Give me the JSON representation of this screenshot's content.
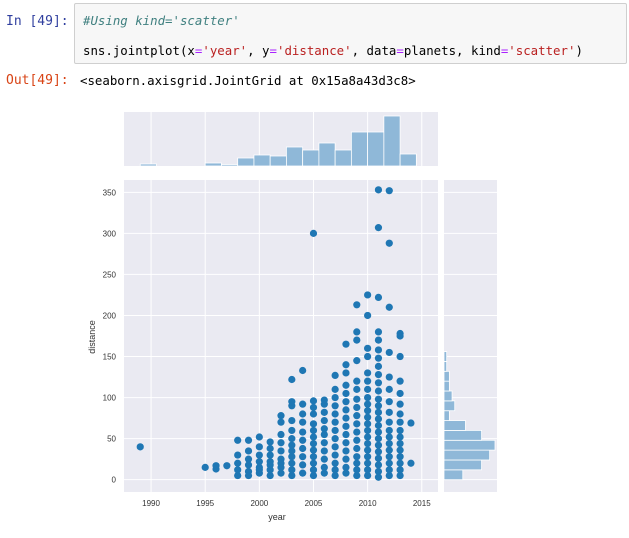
{
  "cell_in": {
    "prompt": "In [49]:",
    "comment_line": "#Using kind='scatter'",
    "code": {
      "p1": "sns.jointplot(x",
      "eq1": "=",
      "s1": "'year'",
      "p2": ", y",
      "eq2": "=",
      "s2": "'distance'",
      "p3": ", data",
      "eq3": "=",
      "p4": "planets, kind",
      "eq4": "=",
      "s4": "'scatter'",
      "p5": ")"
    }
  },
  "cell_out": {
    "prompt": "Out[49]:",
    "text": "<seaborn.axisgrid.JointGrid at 0x15a8a43d3c8>"
  },
  "colors": {
    "accent": "#1f77b4",
    "hist": "#8fb8d8",
    "plot_bg": "#eaeaf2"
  },
  "chart_data": {
    "type": "scatter",
    "xlabel": "year",
    "ylabel": "distance",
    "xlim": [
      1987.5,
      2016.5
    ],
    "ylim": [
      -15,
      365
    ],
    "xticks": [
      1990,
      1995,
      2000,
      2005,
      2010,
      2015
    ],
    "yticks": [
      0,
      50,
      100,
      150,
      200,
      250,
      300,
      350
    ],
    "grid": true,
    "points": [
      [
        1989,
        40
      ],
      [
        1995,
        15
      ],
      [
        1996,
        13
      ],
      [
        1996,
        17
      ],
      [
        1997,
        17
      ],
      [
        1998,
        20
      ],
      [
        1998,
        30
      ],
      [
        1998,
        48
      ],
      [
        1998,
        5
      ],
      [
        1998,
        12
      ],
      [
        1999,
        10
      ],
      [
        1999,
        18
      ],
      [
        1999,
        25
      ],
      [
        1999,
        35
      ],
      [
        1999,
        48
      ],
      [
        1999,
        5
      ],
      [
        2000,
        8
      ],
      [
        2000,
        15
      ],
      [
        2000,
        22
      ],
      [
        2000,
        30
      ],
      [
        2000,
        40
      ],
      [
        2000,
        52
      ],
      [
        2000,
        12
      ],
      [
        2001,
        5
      ],
      [
        2001,
        12
      ],
      [
        2001,
        22
      ],
      [
        2001,
        30
      ],
      [
        2001,
        38
      ],
      [
        2001,
        46
      ],
      [
        2001,
        18
      ],
      [
        2002,
        8
      ],
      [
        2002,
        15
      ],
      [
        2002,
        25
      ],
      [
        2002,
        35
      ],
      [
        2002,
        45
      ],
      [
        2002,
        55
      ],
      [
        2002,
        70
      ],
      [
        2002,
        78
      ],
      [
        2002,
        20
      ],
      [
        2003,
        5
      ],
      [
        2003,
        12
      ],
      [
        2003,
        20
      ],
      [
        2003,
        28
      ],
      [
        2003,
        35
      ],
      [
        2003,
        42
      ],
      [
        2003,
        50
      ],
      [
        2003,
        60
      ],
      [
        2003,
        72
      ],
      [
        2003,
        90
      ],
      [
        2003,
        95
      ],
      [
        2003,
        122
      ],
      [
        2004,
        8
      ],
      [
        2004,
        18
      ],
      [
        2004,
        28
      ],
      [
        2004,
        38
      ],
      [
        2004,
        48
      ],
      [
        2004,
        58
      ],
      [
        2004,
        70
      ],
      [
        2004,
        80
      ],
      [
        2004,
        92
      ],
      [
        2004,
        133
      ],
      [
        2005,
        5
      ],
      [
        2005,
        12
      ],
      [
        2005,
        20
      ],
      [
        2005,
        28
      ],
      [
        2005,
        36
      ],
      [
        2005,
        44
      ],
      [
        2005,
        52
      ],
      [
        2005,
        60
      ],
      [
        2005,
        68
      ],
      [
        2005,
        80
      ],
      [
        2005,
        88
      ],
      [
        2005,
        96
      ],
      [
        2005,
        300
      ],
      [
        2006,
        8
      ],
      [
        2006,
        15
      ],
      [
        2006,
        25
      ],
      [
        2006,
        35
      ],
      [
        2006,
        45
      ],
      [
        2006,
        55
      ],
      [
        2006,
        62
      ],
      [
        2006,
        72
      ],
      [
        2006,
        82
      ],
      [
        2006,
        92
      ],
      [
        2006,
        97
      ],
      [
        2007,
        5
      ],
      [
        2007,
        12
      ],
      [
        2007,
        20
      ],
      [
        2007,
        30
      ],
      [
        2007,
        40
      ],
      [
        2007,
        50
      ],
      [
        2007,
        60
      ],
      [
        2007,
        70
      ],
      [
        2007,
        80
      ],
      [
        2007,
        90
      ],
      [
        2007,
        100
      ],
      [
        2007,
        110
      ],
      [
        2007,
        127
      ],
      [
        2008,
        8
      ],
      [
        2008,
        15
      ],
      [
        2008,
        25
      ],
      [
        2008,
        35
      ],
      [
        2008,
        45
      ],
      [
        2008,
        55
      ],
      [
        2008,
        65
      ],
      [
        2008,
        75
      ],
      [
        2008,
        85
      ],
      [
        2008,
        95
      ],
      [
        2008,
        105
      ],
      [
        2008,
        115
      ],
      [
        2008,
        130
      ],
      [
        2008,
        140
      ],
      [
        2008,
        165
      ],
      [
        2009,
        5
      ],
      [
        2009,
        12
      ],
      [
        2009,
        20
      ],
      [
        2009,
        28
      ],
      [
        2009,
        38
      ],
      [
        2009,
        48
      ],
      [
        2009,
        58
      ],
      [
        2009,
        68
      ],
      [
        2009,
        78
      ],
      [
        2009,
        88
      ],
      [
        2009,
        98
      ],
      [
        2009,
        110
      ],
      [
        2009,
        120
      ],
      [
        2009,
        145
      ],
      [
        2009,
        170
      ],
      [
        2009,
        180
      ],
      [
        2009,
        213
      ],
      [
        2010,
        5
      ],
      [
        2010,
        12
      ],
      [
        2010,
        20
      ],
      [
        2010,
        28
      ],
      [
        2010,
        36
      ],
      [
        2010,
        44
      ],
      [
        2010,
        52
      ],
      [
        2010,
        60
      ],
      [
        2010,
        68
      ],
      [
        2010,
        76
      ],
      [
        2010,
        84
      ],
      [
        2010,
        92
      ],
      [
        2010,
        100
      ],
      [
        2010,
        110
      ],
      [
        2010,
        120
      ],
      [
        2010,
        130
      ],
      [
        2010,
        150
      ],
      [
        2010,
        160
      ],
      [
        2010,
        200
      ],
      [
        2010,
        225
      ],
      [
        2011,
        3
      ],
      [
        2011,
        10
      ],
      [
        2011,
        18
      ],
      [
        2011,
        26
      ],
      [
        2011,
        34
      ],
      [
        2011,
        42
      ],
      [
        2011,
        50
      ],
      [
        2011,
        58
      ],
      [
        2011,
        66
      ],
      [
        2011,
        74
      ],
      [
        2011,
        82
      ],
      [
        2011,
        90
      ],
      [
        2011,
        98
      ],
      [
        2011,
        108
      ],
      [
        2011,
        118
      ],
      [
        2011,
        128
      ],
      [
        2011,
        138
      ],
      [
        2011,
        148
      ],
      [
        2011,
        158
      ],
      [
        2011,
        170
      ],
      [
        2011,
        180
      ],
      [
        2011,
        222
      ],
      [
        2011,
        307
      ],
      [
        2011,
        353
      ],
      [
        2012,
        5
      ],
      [
        2012,
        12
      ],
      [
        2012,
        20
      ],
      [
        2012,
        28
      ],
      [
        2012,
        36
      ],
      [
        2012,
        44
      ],
      [
        2012,
        52
      ],
      [
        2012,
        60
      ],
      [
        2012,
        70
      ],
      [
        2012,
        82
      ],
      [
        2012,
        95
      ],
      [
        2012,
        110
      ],
      [
        2012,
        125
      ],
      [
        2012,
        155
      ],
      [
        2012,
        210
      ],
      [
        2012,
        288
      ],
      [
        2012,
        352
      ],
      [
        2013,
        5
      ],
      [
        2013,
        12
      ],
      [
        2013,
        20
      ],
      [
        2013,
        28
      ],
      [
        2013,
        36
      ],
      [
        2013,
        44
      ],
      [
        2013,
        52
      ],
      [
        2013,
        60
      ],
      [
        2013,
        70
      ],
      [
        2013,
        80
      ],
      [
        2013,
        92
      ],
      [
        2013,
        105
      ],
      [
        2013,
        120
      ],
      [
        2013,
        150
      ],
      [
        2013,
        175
      ],
      [
        2013,
        178
      ],
      [
        2014,
        20
      ],
      [
        2014,
        69
      ]
    ],
    "x_hist": {
      "bins": [
        [
          1989,
          1990.5,
          0.2
        ],
        [
          1995,
          1996.5,
          0.3
        ],
        [
          1996.5,
          1998,
          0.15
        ],
        [
          1998,
          1999.5,
          0.8
        ],
        [
          1999.5,
          2001,
          1.1
        ],
        [
          2001,
          2002.5,
          1.0
        ],
        [
          2002.5,
          2004,
          1.9
        ],
        [
          2004,
          2005.5,
          1.6
        ],
        [
          2005.5,
          2007,
          2.3
        ],
        [
          2007,
          2008.5,
          1.6
        ],
        [
          2008.5,
          2010,
          3.4
        ],
        [
          2010,
          2011.5,
          3.4
        ],
        [
          2011.5,
          2013,
          5.0
        ],
        [
          2013,
          2014.5,
          1.2
        ]
      ]
    },
    "y_hist": {
      "bins": [
        [
          0,
          12,
          7
        ],
        [
          12,
          24,
          14
        ],
        [
          24,
          36,
          17
        ],
        [
          36,
          48,
          19
        ],
        [
          48,
          60,
          14
        ],
        [
          60,
          72,
          8
        ],
        [
          72,
          84,
          2
        ],
        [
          84,
          96,
          4
        ],
        [
          96,
          108,
          3
        ],
        [
          108,
          120,
          2
        ],
        [
          120,
          132,
          2
        ],
        [
          132,
          144,
          1
        ],
        [
          144,
          156,
          1
        ]
      ]
    }
  }
}
